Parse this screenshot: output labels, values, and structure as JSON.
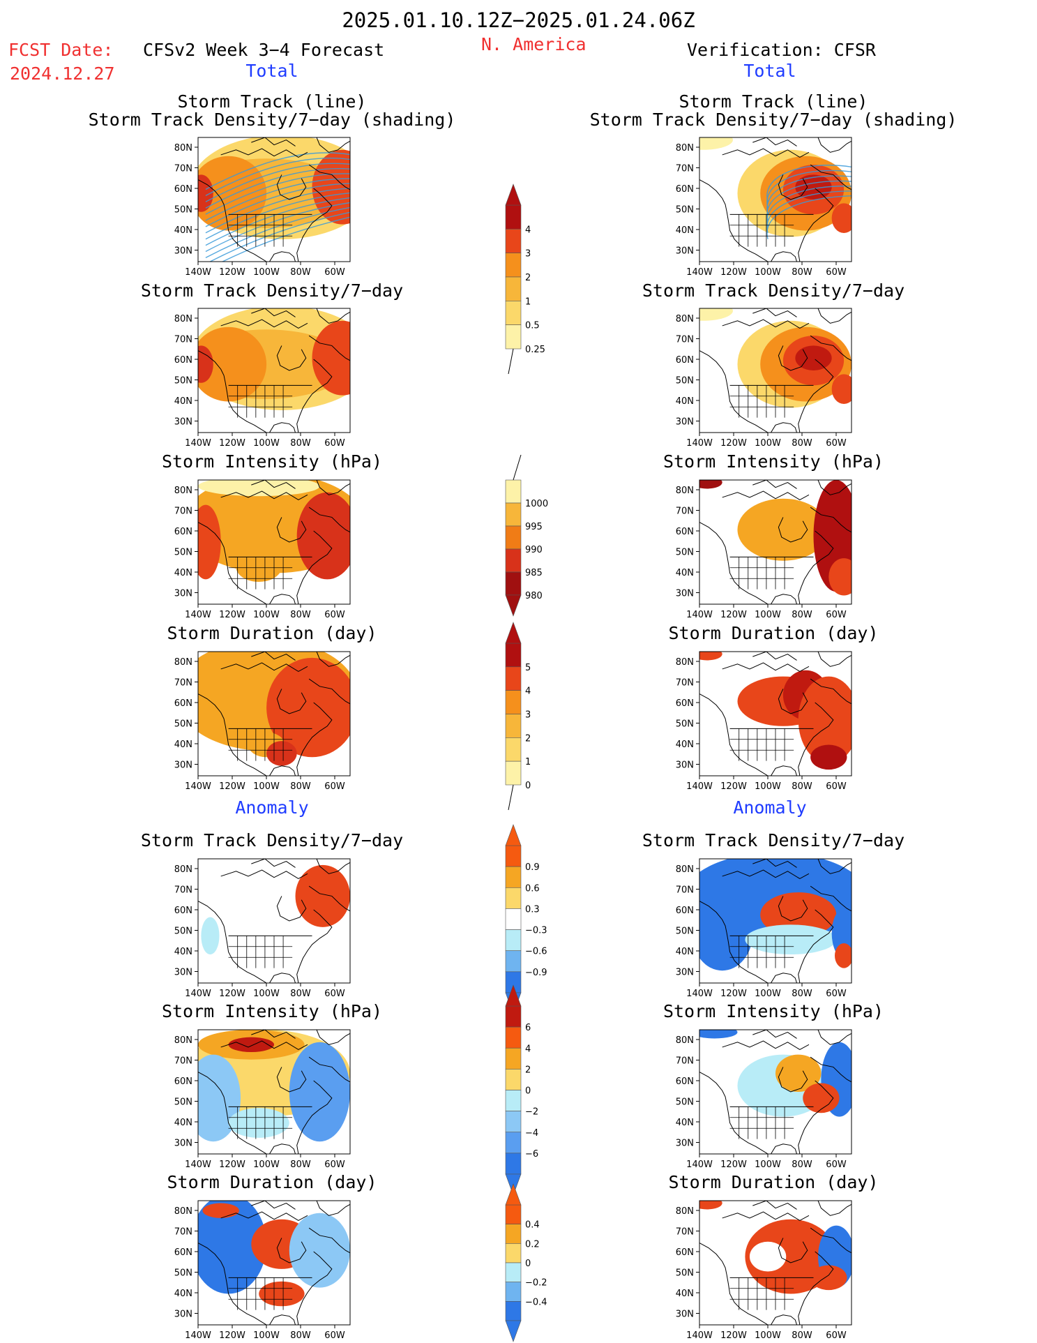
{
  "header": {
    "period": "2025.01.10.12Z−2025.01.24.06Z",
    "fcst_label": "FCST Date:",
    "fcst_date": "2024.12.27",
    "model": "CFSv2 Week 3−4 Forecast",
    "region": "N. America",
    "verification": "Verification: CFSR"
  },
  "sections": {
    "total": "Total",
    "anomaly": "Anomaly"
  },
  "map_axes": {
    "lat_labels": [
      "80N",
      "70N",
      "60N",
      "50N",
      "40N",
      "30N"
    ],
    "lon_labels": [
      "140W",
      "120W",
      "100W",
      "80W",
      "60W"
    ]
  },
  "panels": {
    "forecast": [
      {
        "title": "Storm Track (line)",
        "subtitle": "Storm Track Density/7−day (shading)"
      },
      {
        "title": "Storm Track Density/7−day"
      },
      {
        "title": "Storm Intensity (hPa)"
      },
      {
        "title": "Storm Duration (day)"
      },
      {
        "title": "Storm Track Density/7−day"
      },
      {
        "title": "Storm Intensity (hPa)"
      },
      {
        "title": "Storm Duration (day)"
      }
    ],
    "verification": [
      {
        "title": "Storm Track (line)",
        "subtitle": "Storm Track Density/7−day (shading)"
      },
      {
        "title": "Storm Track Density/7−day"
      },
      {
        "title": "Storm Intensity (hPa)"
      },
      {
        "title": "Storm Duration (day)"
      },
      {
        "title": "Storm Track Density/7−day"
      },
      {
        "title": "Storm Intensity (hPa)"
      },
      {
        "title": "Storm Duration (day)"
      }
    ]
  },
  "colorbars": [
    {
      "labels": [
        "4",
        "3",
        "2",
        "1",
        "0.5",
        "0.25"
      ],
      "colors": [
        "#b01010",
        "#e8461a",
        "#f5901c",
        "#f7b63a",
        "#fbd86a",
        "#fdf2a8"
      ]
    },
    {
      "labels": [
        "1000",
        "995",
        "990",
        "985",
        "980"
      ],
      "colors": [
        "#fdf2a8",
        "#f7b63a",
        "#f07c16",
        "#d8321a",
        "#a01010"
      ]
    },
    {
      "labels": [
        "5",
        "4",
        "3",
        "2",
        "1",
        "0"
      ],
      "colors": [
        "#b01010",
        "#e8461a",
        "#f5901c",
        "#f7b63a",
        "#fbd86a",
        "#fdf2a8"
      ]
    },
    {
      "labels": [
        "0.9",
        "0.6",
        "0.3",
        "−0.3",
        "−0.6",
        "−0.9"
      ],
      "colors": [
        "#f55a10",
        "#f5a623",
        "#fbd86a",
        "#ffffff",
        "#b8ecf7",
        "#6fb4f0",
        "#2e78e6"
      ]
    },
    {
      "labels": [
        "6",
        "4",
        "2",
        "0",
        "−2",
        "−4",
        "−6"
      ],
      "colors": [
        "#c01a10",
        "#f55a10",
        "#f5a623",
        "#fbd86a",
        "#b8ecf7",
        "#8cc8f5",
        "#5a9ef0",
        "#2e78e6"
      ]
    },
    {
      "labels": [
        "0.4",
        "0.2",
        "0",
        "−0.2",
        "−0.4"
      ],
      "colors": [
        "#f55a10",
        "#f5a623",
        "#fbd86a",
        "#b8ecf7",
        "#6fb4f0",
        "#2e78e6"
      ]
    }
  ]
}
